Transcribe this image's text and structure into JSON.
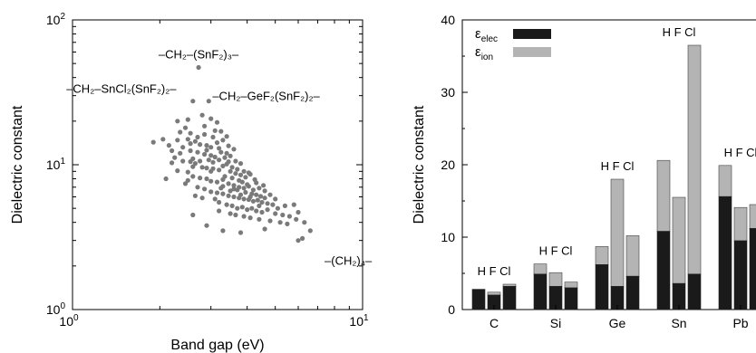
{
  "chart_data": [
    {
      "type": "scatter",
      "xlabel": "Band gap (eV)",
      "ylabel": "Dielectric constant",
      "xscale": "log",
      "yscale": "log",
      "xlim": [
        1,
        10
      ],
      "ylim": [
        1,
        100
      ],
      "xticks": [
        {
          "base": "10",
          "exp": "0",
          "value": 1
        },
        {
          "base": "10",
          "exp": "1",
          "value": 10
        }
      ],
      "yticks": [
        {
          "base": "10",
          "exp": "0",
          "value": 1
        },
        {
          "base": "10",
          "exp": "1",
          "value": 10
        },
        {
          "base": "10",
          "exp": "2",
          "value": 100
        }
      ],
      "marker_color": "#7a7a7a",
      "annotations": [
        {
          "text": "–CH₂–(SnF₂)₃–",
          "x": 2.72,
          "y": 47
        },
        {
          "text": "–CH₂–SnCl₂(SnF₂)₂–",
          "x": 2.28,
          "y": 28
        },
        {
          "text": "–CH₂–GeF₂(SnF₂)₂–",
          "x": 2.95,
          "y": 26
        },
        {
          "text": "–(CH₂)₄–",
          "x": 7.5,
          "y": 2.5
        }
      ],
      "points": [
        [
          2.72,
          47
        ],
        [
          2.6,
          27.5
        ],
        [
          2.95,
          27.5
        ],
        [
          2.3,
          20
        ],
        [
          2.45,
          18
        ],
        [
          2.55,
          16.5
        ],
        [
          2.85,
          18.5
        ],
        [
          3.05,
          15.5
        ],
        [
          3.25,
          17
        ],
        [
          2.5,
          15
        ],
        [
          2.65,
          14.5
        ],
        [
          2.75,
          13.8
        ],
        [
          2.9,
          13.6
        ],
        [
          3.0,
          13.2
        ],
        [
          3.15,
          14.2
        ],
        [
          3.3,
          14.8
        ],
        [
          3.45,
          13.5
        ],
        [
          3.6,
          12.8
        ],
        [
          2.4,
          13.2
        ],
        [
          2.55,
          12.5
        ],
        [
          2.7,
          12.2
        ],
        [
          2.85,
          11.8
        ],
        [
          3.0,
          11.6
        ],
        [
          3.1,
          11.3
        ],
        [
          3.2,
          10.8
        ],
        [
          3.35,
          11.2
        ],
        [
          3.5,
          11.5
        ],
        [
          3.65,
          10.6
        ],
        [
          3.8,
          10.2
        ],
        [
          2.2,
          12.5
        ],
        [
          2.25,
          11.2
        ],
        [
          2.4,
          10.6
        ],
        [
          2.55,
          10.5
        ],
        [
          2.65,
          10.2
        ],
        [
          2.8,
          9.6
        ],
        [
          2.9,
          9.5
        ],
        [
          3.05,
          9.4
        ],
        [
          3.2,
          9.2
        ],
        [
          3.3,
          9.8
        ],
        [
          3.5,
          9.0
        ],
        [
          3.65,
          8.7
        ],
        [
          3.8,
          8.5
        ],
        [
          3.95,
          8.2
        ],
        [
          4.1,
          8.6
        ],
        [
          4.25,
          7.9
        ],
        [
          2.3,
          9.1
        ],
        [
          2.5,
          8.9
        ],
        [
          2.6,
          8.3
        ],
        [
          2.75,
          8.1
        ],
        [
          2.9,
          8.0
        ],
        [
          3.0,
          7.7
        ],
        [
          3.15,
          7.6
        ],
        [
          3.3,
          7.9
        ],
        [
          3.45,
          7.4
        ],
        [
          3.6,
          7.2
        ],
        [
          3.75,
          7.0
        ],
        [
          3.9,
          6.9
        ],
        [
          4.05,
          7.1
        ],
        [
          4.2,
          6.7
        ],
        [
          4.4,
          6.9
        ],
        [
          4.6,
          6.6
        ],
        [
          2.7,
          7.0
        ],
        [
          2.85,
          6.8
        ],
        [
          3.0,
          6.5
        ],
        [
          3.15,
          6.4
        ],
        [
          3.3,
          6.3
        ],
        [
          3.45,
          6.1
        ],
        [
          3.6,
          6.0
        ],
        [
          3.75,
          5.9
        ],
        [
          3.9,
          5.8
        ],
        [
          4.05,
          5.75
        ],
        [
          4.2,
          5.6
        ],
        [
          4.35,
          5.7
        ],
        [
          4.5,
          5.5
        ],
        [
          4.7,
          5.4
        ],
        [
          3.2,
          5.5
        ],
        [
          3.4,
          5.3
        ],
        [
          3.55,
          5.2
        ],
        [
          3.7,
          5.0
        ],
        [
          3.85,
          5.1
        ],
        [
          4.0,
          4.9
        ],
        [
          4.15,
          5.0
        ],
        [
          4.3,
          4.8
        ],
        [
          4.5,
          4.7
        ],
        [
          4.7,
          4.9
        ],
        [
          5.0,
          4.6
        ],
        [
          5.3,
          4.5
        ],
        [
          3.65,
          4.5
        ],
        [
          3.9,
          4.4
        ],
        [
          4.1,
          4.3
        ],
        [
          4.4,
          4.2
        ],
        [
          4.8,
          4.1
        ],
        [
          5.2,
          4.0
        ],
        [
          5.5,
          3.9
        ],
        [
          5.9,
          4.2
        ],
        [
          6.3,
          4.0
        ],
        [
          6.6,
          3.5
        ],
        [
          6.2,
          3.1
        ],
        [
          6.0,
          3.0
        ],
        [
          2.6,
          4.5
        ],
        [
          2.9,
          3.8
        ],
        [
          3.3,
          3.5
        ],
        [
          3.8,
          3.4
        ],
        [
          4.6,
          3.6
        ],
        [
          5.4,
          5.2
        ],
        [
          5.8,
          5.3
        ],
        [
          2.1,
          8.0
        ],
        [
          1.9,
          14.3
        ],
        [
          2.05,
          15.0
        ],
        [
          2.15,
          13.6
        ],
        [
          2.35,
          16.8
        ],
        [
          2.5,
          20.5
        ],
        [
          2.8,
          22.0
        ],
        [
          3.0,
          20.8
        ],
        [
          3.15,
          19.6
        ],
        [
          2.6,
          9.7
        ],
        [
          2.95,
          10.8
        ],
        [
          3.4,
          10.1
        ],
        [
          3.55,
          9.6
        ],
        [
          3.7,
          9.3
        ],
        [
          3.85,
          7.6
        ],
        [
          4.0,
          7.3
        ],
        [
          4.15,
          6.3
        ],
        [
          4.3,
          6.2
        ],
        [
          4.45,
          6.05
        ],
        [
          4.6,
          5.9
        ],
        [
          2.45,
          7.4
        ],
        [
          2.65,
          6.1
        ],
        [
          2.8,
          5.9
        ],
        [
          3.1,
          5.8
        ],
        [
          3.25,
          6.9
        ],
        [
          3.5,
          6.6
        ],
        [
          3.7,
          6.7
        ],
        [
          3.95,
          6.45
        ],
        [
          4.8,
          6.2
        ],
        [
          5.0,
          5.8
        ],
        [
          2.35,
          12.0
        ],
        [
          2.6,
          11.0
        ],
        [
          2.75,
          10.6
        ],
        [
          3.05,
          10.4
        ],
        [
          3.25,
          12.2
        ],
        [
          3.4,
          12.0
        ],
        [
          2.9,
          12.6
        ],
        [
          2.5,
          7.8
        ],
        [
          3.35,
          8.3
        ],
        [
          3.55,
          8.1
        ],
        [
          3.75,
          7.8
        ],
        [
          4.3,
          7.5
        ],
        [
          4.55,
          7.2
        ],
        [
          2.2,
          10.3
        ],
        [
          2.3,
          14.8
        ],
        [
          2.7,
          15.5
        ],
        [
          3.1,
          17.2
        ],
        [
          3.4,
          15.7
        ],
        [
          3.9,
          9.0
        ],
        [
          4.05,
          8.8
        ],
        [
          3.2,
          4.8
        ],
        [
          3.5,
          4.6
        ],
        [
          5.1,
          5.0
        ],
        [
          5.6,
          4.4
        ],
        [
          6.0,
          4.7
        ],
        [
          2.85,
          16.2
        ],
        [
          3.3,
          7.1
        ],
        [
          3.6,
          6.8
        ],
        [
          3.8,
          6.2
        ],
        [
          4.1,
          6.0
        ],
        [
          4.4,
          5.2
        ],
        [
          4.9,
          5.3
        ],
        [
          3.0,
          9.0
        ],
        [
          2.55,
          14.0
        ],
        [
          3.2,
          13.0
        ],
        [
          3.45,
          10.5
        ]
      ]
    },
    {
      "type": "bar",
      "stacked": true,
      "ylabel": "Dielectric constant",
      "ylim": [
        0,
        40
      ],
      "yticks": [
        "0",
        "10",
        "20",
        "30",
        "40"
      ],
      "groups": [
        "C",
        "Si",
        "Ge",
        "Sn",
        "Pb"
      ],
      "bar_labels": [
        "H",
        "F",
        "Cl"
      ],
      "legend_position": "top-left",
      "series": [
        {
          "name": "ε",
          "sub": "elec",
          "color": "#1a1a1a",
          "values": [
            [
              2.8,
              2.0,
              3.2
            ],
            [
              4.9,
              3.2,
              3.0
            ],
            [
              6.2,
              3.2,
              4.6
            ],
            [
              10.8,
              3.6,
              4.9
            ],
            [
              15.6,
              9.5,
              11.2
            ]
          ]
        },
        {
          "name": "ε",
          "sub": "ion",
          "color": "#b4b4b4",
          "values": [
            [
              0.0,
              0.4,
              0.3
            ],
            [
              1.4,
              1.9,
              0.8
            ],
            [
              2.5,
              14.8,
              5.6
            ],
            [
              9.8,
              11.9,
              31.6
            ],
            [
              4.3,
              4.6,
              3.3
            ]
          ]
        }
      ]
    }
  ]
}
